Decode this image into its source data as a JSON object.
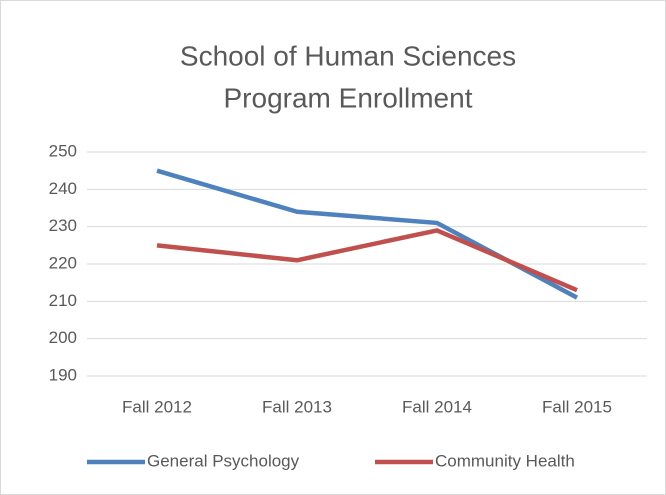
{
  "chart_data": {
    "type": "line",
    "title": [
      "School of Human Sciences",
      "Program Enrollment"
    ],
    "categories": [
      "Fall 2012",
      "Fall 2013",
      "Fall 2014",
      "Fall 2015"
    ],
    "series": [
      {
        "name": "General Psychology",
        "color": "#4f81bd",
        "values": [
          245,
          234,
          231,
          211
        ]
      },
      {
        "name": "Community Health",
        "color": "#c0504d",
        "values": [
          225,
          221,
          229,
          213
        ]
      }
    ],
    "ylim": [
      190,
      250
    ],
    "yticks": [
      190,
      200,
      210,
      220,
      230,
      240,
      250
    ],
    "grid": true,
    "legend": "bottom"
  }
}
